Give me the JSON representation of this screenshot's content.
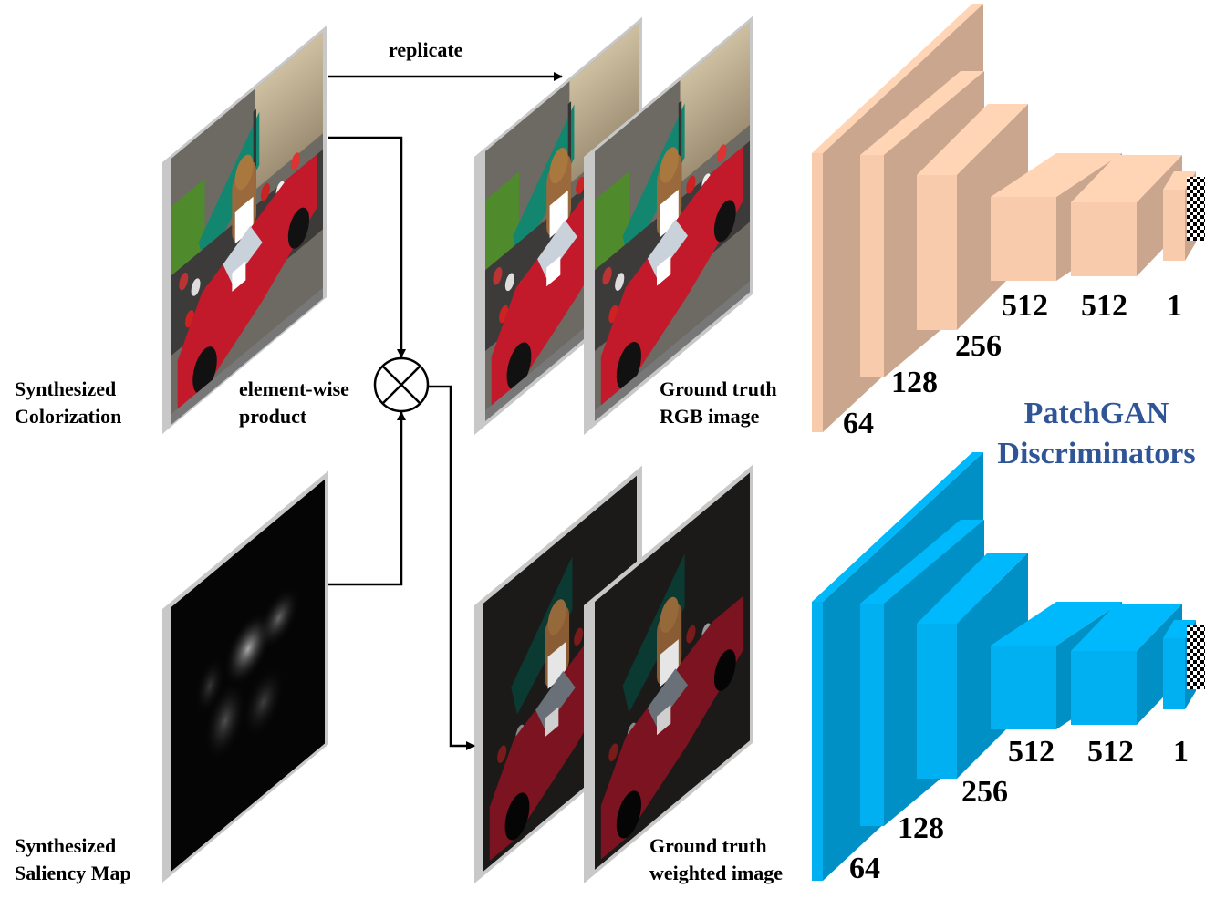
{
  "labels": {
    "synth_color_1": "Synthesized",
    "synth_color_2": "Colorization",
    "synth_sal_1": "Synthesized",
    "synth_sal_2": "Saliency Map",
    "product_1": "element-wise",
    "product_2": "product",
    "replicate": "replicate",
    "gt_rgb_1": "Ground truth",
    "gt_rgb_2": "RGB image",
    "gt_weighted_1": "Ground truth",
    "gt_weighted_2": "weighted image"
  },
  "discriminator": {
    "title_1": "PatchGAN",
    "title_2": "Discriminators",
    "top": {
      "color": "#f8cbad",
      "channels": [
        "64",
        "128",
        "256",
        "512",
        "512",
        "1"
      ]
    },
    "bottom": {
      "color": "#00b0f0",
      "channels": [
        "64",
        "128",
        "256",
        "512",
        "512",
        "1"
      ]
    }
  },
  "colors": {
    "title": "#2f5597",
    "frame": "#c8c8c8"
  }
}
